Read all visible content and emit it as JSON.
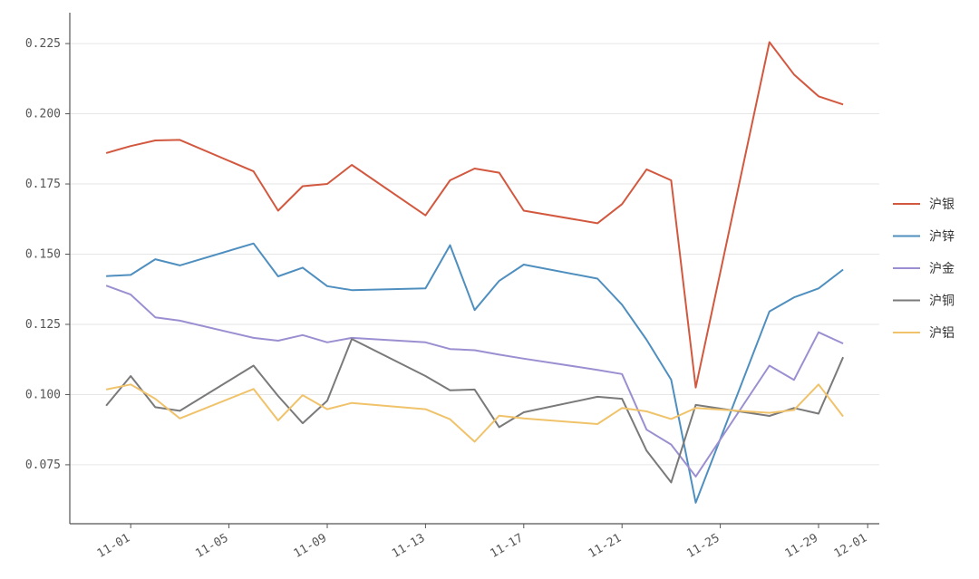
{
  "chart_data": {
    "type": "line",
    "title": "",
    "xlabel": "",
    "ylabel": "",
    "x_range": [
      "2023-10-30",
      "2023-12-01"
    ],
    "ylim": [
      0.054,
      0.236
    ],
    "yticks": [
      "0.075",
      "0.100",
      "0.125",
      "0.150",
      "0.175",
      "0.200",
      "0.225"
    ],
    "xticks": [
      {
        "date": "2023-11-01",
        "label": "11-01"
      },
      {
        "date": "2023-11-05",
        "label": "11-05"
      },
      {
        "date": "2023-11-09",
        "label": "11-09"
      },
      {
        "date": "2023-11-13",
        "label": "11-13"
      },
      {
        "date": "2023-11-17",
        "label": "11-17"
      },
      {
        "date": "2023-11-21",
        "label": "11-21"
      },
      {
        "date": "2023-11-25",
        "label": "11-25"
      },
      {
        "date": "2023-11-29",
        "label": "11-29"
      },
      {
        "date": "2023-12-01",
        "label": "12-01"
      }
    ],
    "grid": "horizontal",
    "legend_position": "right",
    "x": [
      "2023-10-31",
      "2023-11-01",
      "2023-11-02",
      "2023-11-03",
      "2023-11-06",
      "2023-11-07",
      "2023-11-08",
      "2023-11-09",
      "2023-11-10",
      "2023-11-13",
      "2023-11-14",
      "2023-11-15",
      "2023-11-16",
      "2023-11-17",
      "2023-11-20",
      "2023-11-21",
      "2023-11-22",
      "2023-11-23",
      "2023-11-24",
      "2023-11-27",
      "2023-11-28",
      "2023-11-29",
      "2023-11-30"
    ],
    "series": [
      {
        "name": "沪银",
        "color": "#d2583f",
        "values": [
          0.186,
          0.1885,
          0.1905,
          0.1907,
          0.1795,
          0.1655,
          0.1742,
          0.175,
          0.1818,
          0.1638,
          0.1763,
          0.1805,
          0.179,
          0.1655,
          0.161,
          0.1678,
          0.1802,
          0.1763,
          0.1025,
          0.2255,
          0.214,
          0.2062,
          0.2033
        ]
      },
      {
        "name": "沪锌",
        "color": "#4f8fbf",
        "values": [
          0.1422,
          0.1426,
          0.1482,
          0.146,
          0.1538,
          0.1421,
          0.1452,
          0.1386,
          0.1372,
          0.1378,
          0.1532,
          0.1301,
          0.1405,
          0.1463,
          0.1413,
          0.132,
          0.1195,
          0.1053,
          0.0615,
          0.1296,
          0.1346,
          0.1378,
          0.1445
        ]
      },
      {
        "name": "沪金",
        "color": "#9c8fd1",
        "values": [
          0.1388,
          0.1356,
          0.1275,
          0.1263,
          0.1202,
          0.1192,
          0.1212,
          0.1186,
          0.1202,
          0.1186,
          0.1162,
          0.1158,
          0.1142,
          0.1128,
          0.1088,
          0.1073,
          0.0875,
          0.0822,
          0.0708,
          0.1103,
          0.1052,
          0.1222,
          0.1182
        ]
      },
      {
        "name": "沪铜",
        "color": "#7a7a7a",
        "values": [
          0.096,
          0.1066,
          0.0955,
          0.0942,
          0.1103,
          0.0995,
          0.0898,
          0.0978,
          0.1198,
          0.1066,
          0.1015,
          0.1018,
          0.0884,
          0.0937,
          0.0992,
          0.0985,
          0.08,
          0.0687,
          0.0963,
          0.0924,
          0.0952,
          0.0932,
          0.1133
        ]
      },
      {
        "name": "沪铝",
        "color": "#f0c36b",
        "values": [
          0.1018,
          0.1036,
          0.0985,
          0.0915,
          0.102,
          0.0908,
          0.0998,
          0.0948,
          0.097,
          0.0948,
          0.0912,
          0.0832,
          0.0925,
          0.0915,
          0.0895,
          0.0952,
          0.094,
          0.0913,
          0.0952,
          0.0935,
          0.0945,
          0.1036,
          0.0922
        ]
      }
    ]
  }
}
